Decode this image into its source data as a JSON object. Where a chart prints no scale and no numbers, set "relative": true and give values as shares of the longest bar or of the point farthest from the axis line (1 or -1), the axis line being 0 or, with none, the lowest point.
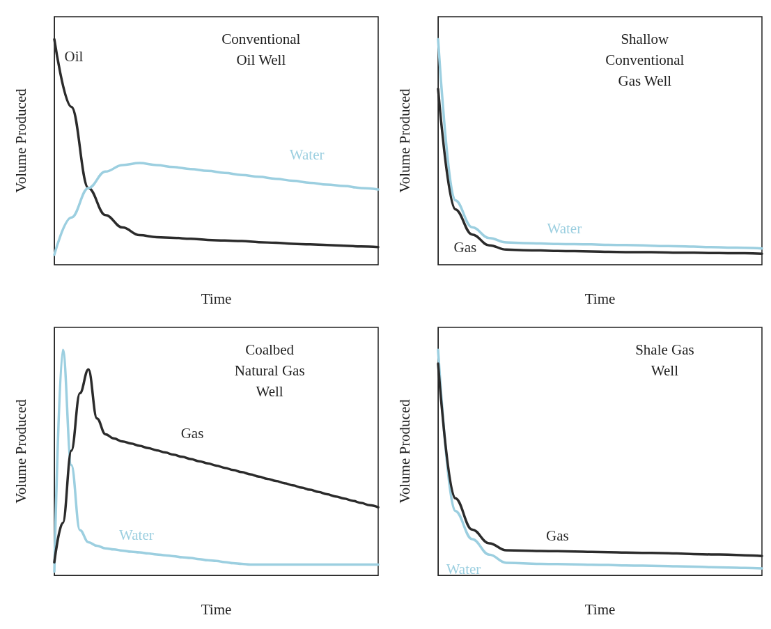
{
  "chart_data": [
    {
      "type": "line",
      "title": "Conventional\nOil Well",
      "xlabel": "Time",
      "ylabel": "Volume Produced",
      "relative": true,
      "categories": [
        null,
        null,
        null,
        null,
        null,
        null,
        null,
        null,
        null,
        null,
        null,
        null,
        null,
        null,
        null,
        null,
        null,
        null,
        null,
        null
      ],
      "series": [
        {
          "name": "Oil",
          "color": "#2b2b2b",
          "values": [
            1,
            0.7,
            0.34,
            0.22,
            0.165,
            0.131,
            0.122,
            0.119,
            0.115,
            0.11,
            0.107,
            0.105,
            0.1,
            0.097,
            0.093,
            0.09,
            0.087,
            0.084,
            0.081,
            0.078
          ]
        },
        {
          "name": "Water",
          "color": "#9ccfe0",
          "values": [
            0.044,
            0.209,
            0.34,
            0.413,
            0.442,
            0.451,
            0.442,
            0.433,
            0.424,
            0.416,
            0.407,
            0.398,
            0.39,
            0.381,
            0.372,
            0.363,
            0.355,
            0.349,
            0.34,
            0.334
          ]
        }
      ]
    },
    {
      "type": "line",
      "title": "Shallow\nConventional\nGas Well",
      "xlabel": "Time",
      "ylabel": "Volume Produced",
      "relative": true,
      "categories": [
        null,
        null,
        null,
        null,
        null,
        null,
        null,
        null,
        null,
        null,
        null,
        null,
        null,
        null,
        null,
        null,
        null,
        null,
        null,
        null
      ],
      "series": [
        {
          "name": "Water",
          "color": "#9ccfe0",
          "values": [
            1,
            0.286,
            0.166,
            0.118,
            0.099,
            0.096,
            0.094,
            0.092,
            0.091,
            0.09,
            0.088,
            0.087,
            0.086,
            0.083,
            0.082,
            0.08,
            0.078,
            0.076,
            0.075,
            0.072
          ]
        },
        {
          "name": "Gas",
          "color": "#2b2b2b",
          "values": [
            0.78,
            0.246,
            0.134,
            0.086,
            0.067,
            0.064,
            0.063,
            0.061,
            0.06,
            0.059,
            0.057,
            0.056,
            0.056,
            0.055,
            0.053,
            0.053,
            0.052,
            0.051,
            0.051,
            0.049
          ]
        }
      ]
    },
    {
      "type": "line",
      "title": "Coalbed\nNatural Gas\nWell",
      "xlabel": "Time",
      "ylabel": "Volume Produced",
      "relative": true,
      "categories": [
        null,
        null,
        null,
        null,
        null,
        null,
        null,
        null,
        null,
        null,
        null,
        null,
        null,
        null,
        null,
        null,
        null,
        null,
        null,
        null,
        null,
        null,
        null,
        null,
        null,
        null,
        null,
        null,
        null,
        null,
        null,
        null,
        null,
        null,
        null,
        null,
        null,
        null,
        null
      ],
      "series": [
        {
          "name": "Water",
          "color": "#9ccfe0",
          "values": [
            0.016,
            1,
            0.489,
            0.201,
            0.147,
            0.131,
            0.12,
            0.115,
            0.11,
            0.105,
            0.102,
            0.097,
            0.093,
            0.089,
            0.085,
            0.08,
            0.077,
            0.072,
            0.067,
            0.064,
            0.059,
            0.054,
            0.051,
            0.048,
            0.048,
            0.048,
            0.048,
            0.048,
            0.048,
            0.048,
            0.048,
            0.048,
            0.048,
            0.048,
            0.048,
            0.048,
            0.048,
            0.048,
            0.048
          ]
        },
        {
          "name": "Gas",
          "color": "#2b2b2b",
          "values": [
            0.058,
            0.233,
            0.553,
            0.808,
            0.914,
            0.696,
            0.626,
            0.607,
            0.594,
            0.585,
            0.575,
            0.565,
            0.555,
            0.545,
            0.535,
            0.526,
            0.516,
            0.506,
            0.497,
            0.487,
            0.477,
            0.467,
            0.458,
            0.448,
            0.438,
            0.428,
            0.419,
            0.409,
            0.399,
            0.389,
            0.38,
            0.37,
            0.36,
            0.35,
            0.341,
            0.331,
            0.321,
            0.311,
            0.302
          ]
        }
      ]
    },
    {
      "type": "line",
      "title": "Shale Gas\nWell",
      "xlabel": "Time",
      "ylabel": "Volume Produced",
      "relative": true,
      "categories": [
        null,
        null,
        null,
        null,
        null,
        null,
        null,
        null,
        null,
        null,
        null,
        null,
        null,
        null,
        null,
        null,
        null,
        null,
        null,
        null
      ],
      "series": [
        {
          "name": "Water",
          "color": "#9ccfe0",
          "values": [
            1,
            0.286,
            0.161,
            0.092,
            0.056,
            0.053,
            0.051,
            0.05,
            0.049,
            0.047,
            0.046,
            0.044,
            0.043,
            0.042,
            0.04,
            0.039,
            0.036,
            0.035,
            0.033,
            0.031
          ]
        },
        {
          "name": "Gas",
          "color": "#2b2b2b",
          "values": [
            0.939,
            0.342,
            0.203,
            0.142,
            0.111,
            0.11,
            0.108,
            0.107,
            0.106,
            0.104,
            0.103,
            0.101,
            0.1,
            0.099,
            0.097,
            0.094,
            0.093,
            0.092,
            0.089,
            0.086
          ]
        }
      ]
    }
  ]
}
